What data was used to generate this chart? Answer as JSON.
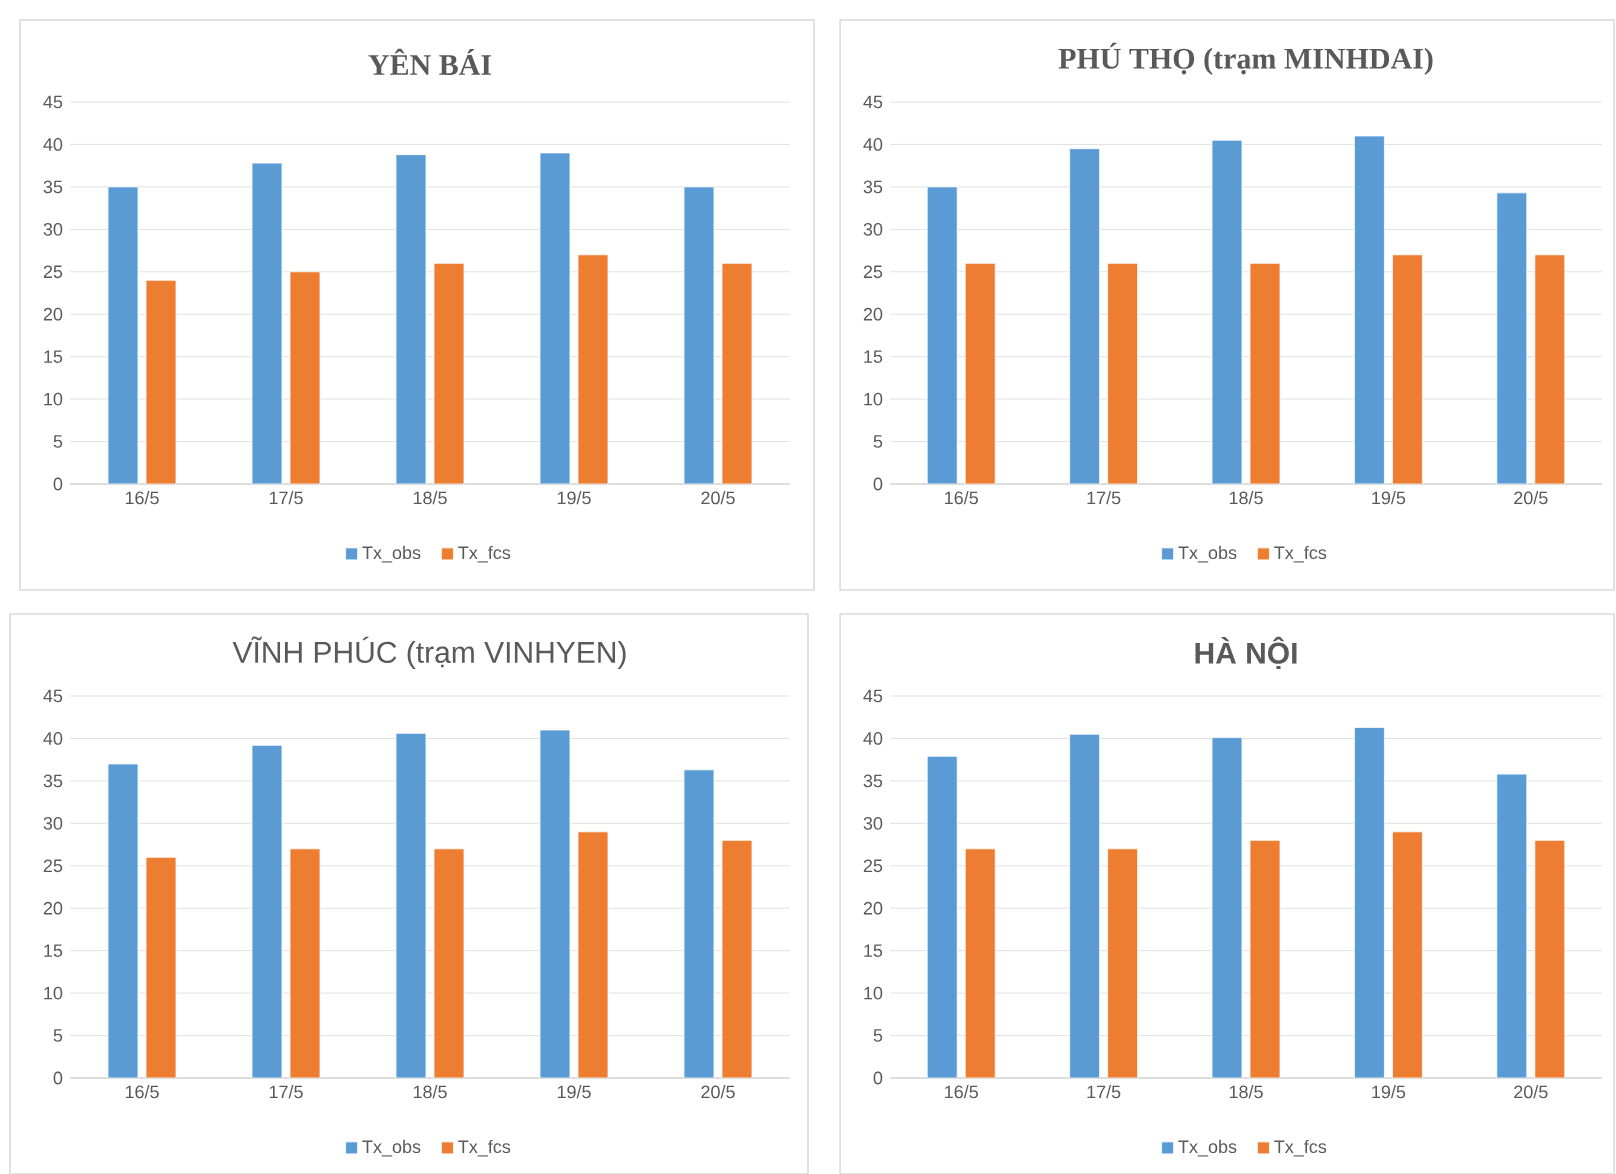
{
  "chart_data": [
    {
      "type": "bar",
      "title": "YÊN BÁI",
      "categories": [
        "16/5",
        "17/5",
        "18/5",
        "19/5",
        "20/5"
      ],
      "series": [
        {
          "name": "Tx_obs",
          "color": "#5b9bd5",
          "values": [
            35,
            37.8,
            38.8,
            39,
            35
          ]
        },
        {
          "name": "Tx_fcs",
          "color": "#ed7d31",
          "values": [
            24,
            25,
            26,
            27,
            26
          ]
        }
      ],
      "ylim": [
        0,
        45
      ],
      "yticks": [
        0,
        5,
        10,
        15,
        20,
        25,
        30,
        35,
        40,
        45
      ],
      "grid": "y",
      "legend": "bottom"
    },
    {
      "type": "bar",
      "title": "PHÚ THỌ (trạm MINHDAI)",
      "categories": [
        "16/5",
        "17/5",
        "18/5",
        "19/5",
        "20/5"
      ],
      "series": [
        {
          "name": "Tx_obs",
          "color": "#5b9bd5",
          "values": [
            35,
            39.5,
            40.5,
            41,
            34.3
          ]
        },
        {
          "name": "Tx_fcs",
          "color": "#ed7d31",
          "values": [
            26,
            26,
            26,
            27,
            27
          ]
        }
      ],
      "ylim": [
        0,
        45
      ],
      "yticks": [
        0,
        5,
        10,
        15,
        20,
        25,
        30,
        35,
        40,
        45
      ],
      "grid": "y",
      "legend": "bottom"
    },
    {
      "type": "bar",
      "title": "VĨNH PHÚC (trạm VINHYEN)",
      "categories": [
        "16/5",
        "17/5",
        "18/5",
        "19/5",
        "20/5"
      ],
      "series": [
        {
          "name": "Tx_obs",
          "color": "#5b9bd5",
          "values": [
            37,
            39.2,
            40.6,
            41,
            36.3
          ]
        },
        {
          "name": "Tx_fcs",
          "color": "#ed7d31",
          "values": [
            26,
            27,
            27,
            29,
            28
          ]
        }
      ],
      "ylim": [
        0,
        45
      ],
      "yticks": [
        0,
        5,
        10,
        15,
        20,
        25,
        30,
        35,
        40,
        45
      ],
      "grid": "y",
      "legend": "bottom"
    },
    {
      "type": "bar",
      "title": "HÀ NỘI",
      "categories": [
        "16/5",
        "17/5",
        "18/5",
        "19/5",
        "20/5"
      ],
      "series": [
        {
          "name": "Tx_obs",
          "color": "#5b9bd5",
          "values": [
            37.9,
            40.5,
            40.1,
            41.3,
            35.8
          ]
        },
        {
          "name": "Tx_fcs",
          "color": "#ed7d31",
          "values": [
            27,
            27,
            28,
            29,
            28
          ]
        }
      ],
      "ylim": [
        0,
        45
      ],
      "yticks": [
        0,
        5,
        10,
        15,
        20,
        25,
        30,
        35,
        40,
        45
      ],
      "grid": "y",
      "legend": "bottom"
    }
  ]
}
